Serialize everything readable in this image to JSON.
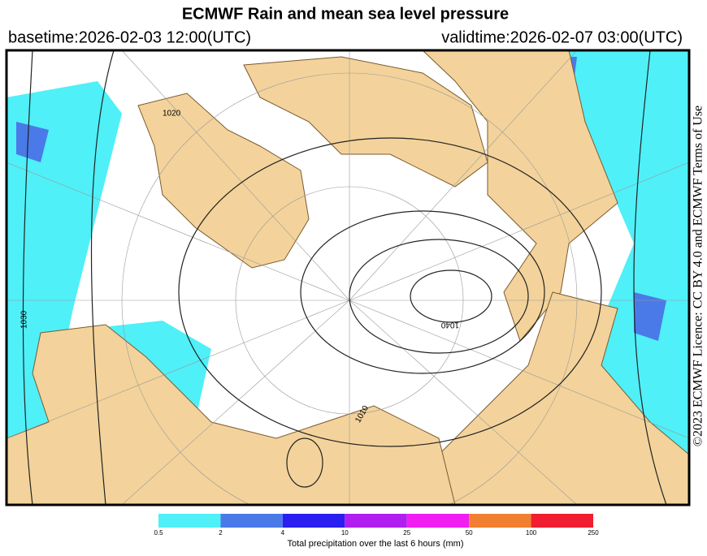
{
  "header": {
    "title": "ECMWF Rain and mean sea level pressure",
    "basetime": "basetime:2026-02-03 12:00(UTC)",
    "validtime": "validtime:2026-02-07 03:00(UTC)"
  },
  "map": {
    "contour_labels": [
      "1020",
      "1040",
      "1030",
      "1010"
    ]
  },
  "licence": "©2023 ECMWF Licence: CC BY 4.0 and ECMWF Terms of Use",
  "colorbar": {
    "ticks": [
      0.5,
      2,
      4,
      10,
      25,
      50,
      100,
      250
    ],
    "colors": [
      "#4ff0f8",
      "#4a7ae8",
      "#2a1ef0",
      "#b01ef0",
      "#f01ef0",
      "#f08030",
      "#f01e30"
    ],
    "label": "Total precipitation over the last 6 hours (mm)"
  }
}
